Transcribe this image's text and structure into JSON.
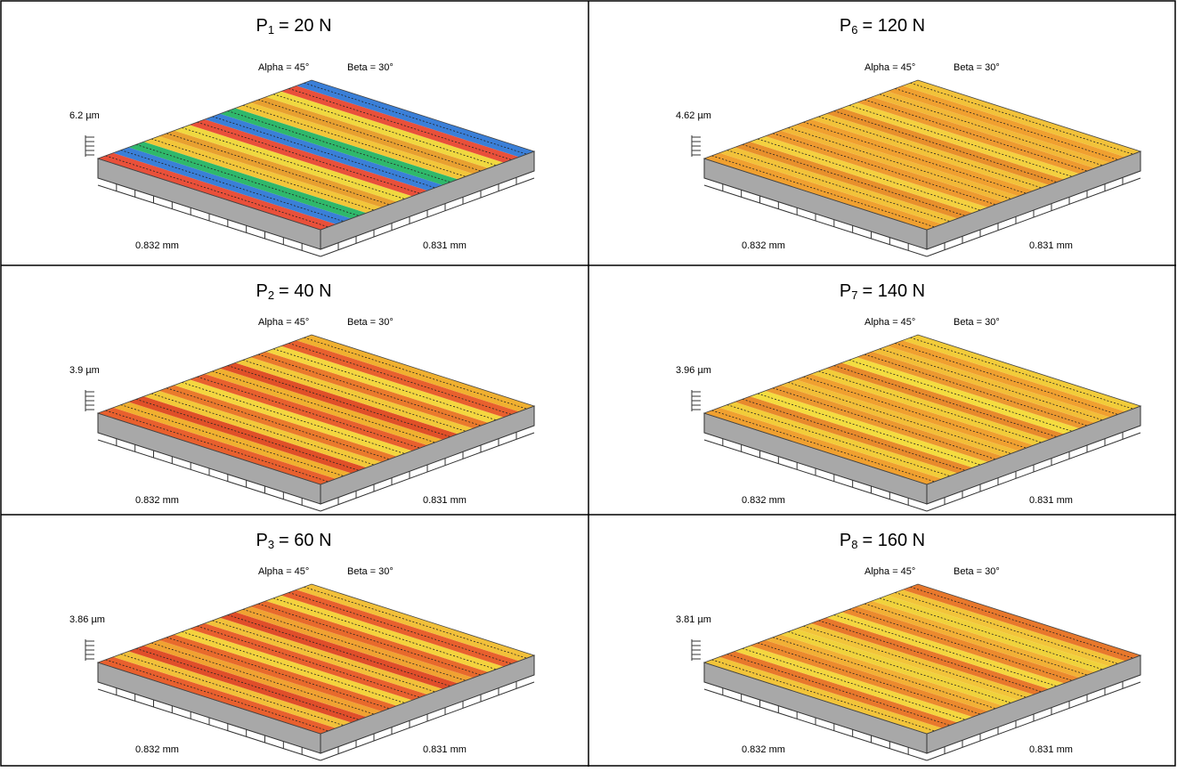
{
  "panels": [
    {
      "letter": "P",
      "sub": "1",
      "load": "= 20 N",
      "alpha": "Alpha = 45°",
      "beta": "Beta = 30°",
      "z": "6.2 µm",
      "x": "0.832 mm",
      "y": "0.831 mm"
    },
    {
      "letter": "P",
      "sub": "6",
      "load": "= 120 N",
      "alpha": "Alpha = 45°",
      "beta": "Beta = 30°",
      "z": "4.62 µm",
      "x": "0.832 mm",
      "y": "0.831 mm"
    },
    {
      "letter": "P",
      "sub": "2",
      "load": "= 40 N",
      "alpha": "Alpha = 45°",
      "beta": "Beta = 30°",
      "z": "3.9 µm",
      "x": "0.832 mm",
      "y": "0.831 mm"
    },
    {
      "letter": "P",
      "sub": "7",
      "load": "= 140 N",
      "alpha": "Alpha = 45°",
      "beta": "Beta = 30°",
      "z": "3.96 µm",
      "x": "0.832 mm",
      "y": "0.831 mm"
    },
    {
      "letter": "P",
      "sub": "3",
      "load": "= 60 N",
      "alpha": "Alpha = 45°",
      "beta": "Beta = 30°",
      "z": "3.86 µm",
      "x": "0.832 mm",
      "y": "0.831 mm"
    },
    {
      "letter": "P",
      "sub": "8",
      "load": "= 160 N",
      "alpha": "Alpha = 45°",
      "beta": "Beta = 30°",
      "z": "3.81 µm",
      "x": "0.832 mm",
      "y": "0.831 mm"
    }
  ]
}
